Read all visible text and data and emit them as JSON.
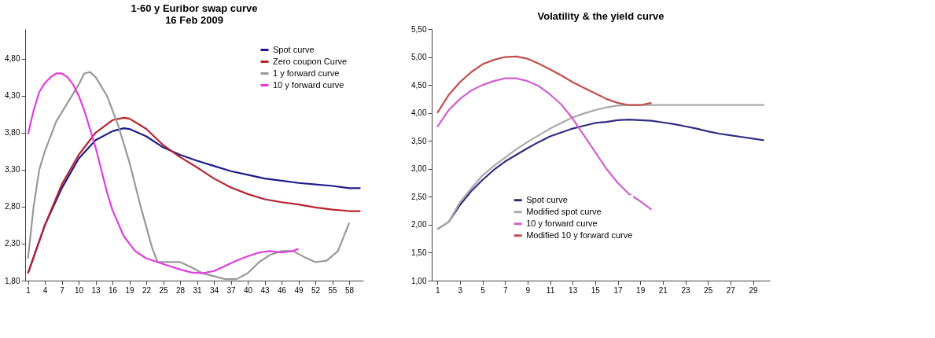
{
  "chart_data": [
    {
      "type": "line",
      "title": [
        "1-60  y Euribor swap curve",
        "16 Feb 2009"
      ],
      "legend": "top right",
      "grid": false,
      "xlim": [
        0.5,
        60.5
      ],
      "xticks": [
        1,
        4,
        7,
        10,
        13,
        16,
        19,
        22,
        25,
        28,
        31,
        34,
        37,
        40,
        43,
        46,
        49,
        52,
        55,
        58
      ],
      "ylim": [
        1.8,
        5.2
      ],
      "yticks": [
        {
          "value": 1.8,
          "label": "1,80"
        },
        {
          "value": 2.3,
          "label": "2,30"
        },
        {
          "value": 2.8,
          "label": "2,80"
        },
        {
          "value": 3.3,
          "label": "3,30"
        },
        {
          "value": 3.8,
          "label": "3,80"
        },
        {
          "value": 4.3,
          "label": "4,30"
        },
        {
          "value": 4.8,
          "label": "4,80"
        }
      ],
      "series": [
        {
          "name": "Spot curve",
          "color": "#1c1c8c",
          "x": [
            1,
            4,
            7,
            10,
            13,
            16,
            18,
            19,
            22,
            25,
            28,
            31,
            34,
            37,
            40,
            43,
            46,
            49,
            52,
            55,
            58,
            60
          ],
          "values": [
            1.9,
            2.55,
            3.05,
            3.45,
            3.7,
            3.82,
            3.86,
            3.85,
            3.75,
            3.6,
            3.5,
            3.42,
            3.35,
            3.28,
            3.23,
            3.18,
            3.15,
            3.12,
            3.1,
            3.08,
            3.05,
            3.05
          ]
        },
        {
          "name": "Zero coupon Curve",
          "color": "#b8232e",
          "x": [
            1,
            4,
            7,
            10,
            13,
            16,
            18,
            19,
            22,
            25,
            28,
            31,
            34,
            37,
            40,
            43,
            46,
            49,
            52,
            55,
            58,
            60
          ],
          "values": [
            1.9,
            2.55,
            3.1,
            3.5,
            3.8,
            3.97,
            4.0,
            3.99,
            3.85,
            3.63,
            3.47,
            3.33,
            3.18,
            3.06,
            2.97,
            2.9,
            2.86,
            2.83,
            2.79,
            2.76,
            2.74,
            2.74
          ]
        },
        {
          "name": "1 y forward curve",
          "color": "#999999",
          "x": [
            1,
            2,
            3,
            4,
            6,
            8,
            10,
            11,
            12,
            13,
            15,
            17,
            19,
            21,
            23,
            24,
            25,
            27,
            28,
            30,
            32,
            34,
            36,
            38,
            40,
            42,
            44,
            46,
            48,
            50,
            52,
            54,
            56,
            58
          ],
          "values": [
            2.1,
            2.8,
            3.3,
            3.55,
            3.95,
            4.2,
            4.45,
            4.6,
            4.62,
            4.55,
            4.3,
            3.9,
            3.4,
            2.8,
            2.25,
            2.05,
            2.05,
            2.05,
            2.05,
            1.98,
            1.9,
            1.86,
            1.82,
            1.82,
            1.9,
            2.05,
            2.15,
            2.2,
            2.2,
            2.12,
            2.05,
            2.07,
            2.2,
            2.58
          ]
        },
        {
          "name": "10 y forward curve",
          "color": "#e03ce0",
          "x": [
            1,
            2,
            3,
            4,
            5,
            6,
            7,
            8,
            9,
            10,
            11,
            12,
            13,
            14,
            15,
            16,
            18,
            20,
            22,
            24,
            26,
            28,
            30,
            32,
            34,
            36,
            38,
            40,
            42,
            44,
            46,
            48,
            49
          ],
          "values": [
            3.78,
            4.1,
            4.35,
            4.47,
            4.55,
            4.6,
            4.6,
            4.55,
            4.45,
            4.3,
            4.1,
            3.85,
            3.6,
            3.3,
            3.0,
            2.75,
            2.4,
            2.2,
            2.1,
            2.05,
            2.0,
            1.95,
            1.91,
            1.9,
            1.93,
            2.0,
            2.07,
            2.13,
            2.18,
            2.2,
            2.18,
            2.2,
            2.23
          ]
        }
      ]
    },
    {
      "type": "line",
      "title": "Volatility & the yield curve",
      "legend": "bottom left",
      "grid": false,
      "xlim": [
        0.5,
        30.5
      ],
      "xticks": [
        1,
        3,
        5,
        7,
        9,
        11,
        13,
        15,
        17,
        19,
        21,
        23,
        25,
        27,
        29
      ],
      "ylim": [
        1.0,
        5.5
      ],
      "yticks": [
        {
          "value": 1.0,
          "label": "1,00"
        },
        {
          "value": 1.5,
          "label": "1,50"
        },
        {
          "value": 2.0,
          "label": "2,00"
        },
        {
          "value": 2.5,
          "label": "2,50"
        },
        {
          "value": 3.0,
          "label": "3,00"
        },
        {
          "value": 3.5,
          "label": "3,50"
        },
        {
          "value": 4.0,
          "label": "4,00"
        },
        {
          "value": 4.5,
          "label": "4,50"
        },
        {
          "value": 5.0,
          "label": "5,00"
        },
        {
          "value": 5.5,
          "label": "5,50"
        }
      ],
      "series": [
        {
          "name": "Spot curve",
          "color": "#2e2e80",
          "x": [
            1,
            2,
            3,
            4,
            5,
            6,
            7,
            8,
            9,
            10,
            11,
            12,
            13,
            14,
            15,
            16,
            17,
            18,
            19,
            20,
            21,
            22,
            23,
            24,
            25,
            26,
            27,
            28,
            29,
            30
          ],
          "values": [
            1.92,
            2.05,
            2.35,
            2.6,
            2.8,
            2.98,
            3.13,
            3.25,
            3.37,
            3.48,
            3.58,
            3.65,
            3.72,
            3.77,
            3.82,
            3.84,
            3.87,
            3.88,
            3.87,
            3.86,
            3.83,
            3.8,
            3.76,
            3.72,
            3.67,
            3.63,
            3.6,
            3.57,
            3.54,
            3.51
          ]
        },
        {
          "name": "Modified spot curve",
          "color": "#aaaaaa",
          "x": [
            1,
            2,
            3,
            4,
            5,
            6,
            7,
            8,
            9,
            10,
            11,
            12,
            13,
            14,
            15,
            16,
            17,
            18,
            19,
            20,
            21,
            22,
            23,
            24,
            25,
            26,
            27,
            28,
            29,
            30
          ],
          "values": [
            1.92,
            2.05,
            2.4,
            2.65,
            2.88,
            3.05,
            3.2,
            3.35,
            3.48,
            3.6,
            3.72,
            3.82,
            3.92,
            3.99,
            4.05,
            4.1,
            4.13,
            4.14,
            4.14,
            4.14,
            4.14,
            4.14,
            4.14,
            4.14,
            4.14,
            4.14,
            4.14,
            4.14,
            4.14,
            4.14
          ]
        },
        {
          "name": "10 y forward curve",
          "color": "#d060d0",
          "x": [
            1,
            2,
            3,
            4,
            5,
            6,
            7,
            8,
            9,
            10,
            11,
            12,
            13,
            14,
            15,
            16,
            17,
            18,
            19,
            20
          ],
          "values": [
            3.75,
            4.05,
            4.25,
            4.4,
            4.5,
            4.57,
            4.62,
            4.62,
            4.57,
            4.48,
            4.33,
            4.15,
            3.9,
            3.6,
            3.3,
            3.0,
            2.75,
            2.55,
            2.42,
            2.27
          ]
        },
        {
          "name": "Modified 10 y forward curve",
          "color": "#c0504d",
          "x": [
            1,
            2,
            3,
            4,
            5,
            6,
            7,
            8,
            9,
            10,
            11,
            12,
            13,
            14,
            15,
            16,
            17,
            18,
            19,
            20
          ],
          "values": [
            4.0,
            4.32,
            4.55,
            4.73,
            4.87,
            4.95,
            5.0,
            5.01,
            4.97,
            4.88,
            4.78,
            4.67,
            4.55,
            4.45,
            4.35,
            4.25,
            4.18,
            4.14,
            4.14,
            4.18
          ]
        }
      ]
    }
  ]
}
